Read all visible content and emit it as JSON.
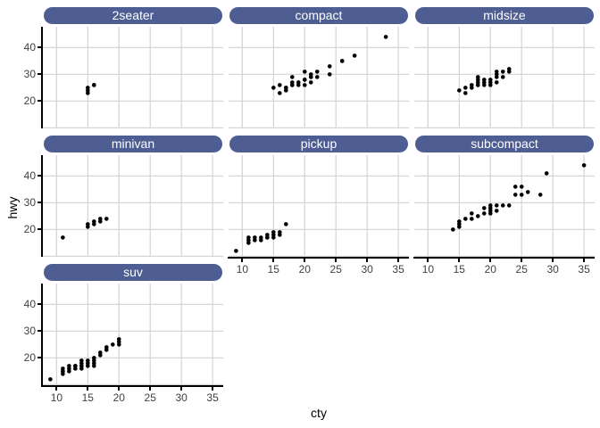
{
  "chart_data": {
    "type": "scatter",
    "title": "",
    "xlabel": "cty",
    "ylabel": "hwy",
    "x_ticks": [
      10,
      15,
      20,
      25,
      30,
      35
    ],
    "y_ticks": [
      20,
      30,
      40
    ],
    "y_gridlines": [
      10,
      20,
      30,
      40
    ],
    "xlim": [
      7.8,
      36.7
    ],
    "ylim": [
      9.8,
      47.8
    ],
    "grid": "major-only",
    "legend": "none",
    "facets": [
      {
        "label": "2seater",
        "points": [
          [
            15,
            23
          ],
          [
            15,
            24
          ],
          [
            15,
            25
          ],
          [
            16,
            26
          ],
          [
            16,
            26
          ]
        ]
      },
      {
        "label": "compact",
        "points": [
          [
            15,
            25
          ],
          [
            16,
            23
          ],
          [
            16,
            26
          ],
          [
            17,
            24
          ],
          [
            17,
            25
          ],
          [
            17,
            25
          ],
          [
            18,
            26
          ],
          [
            18,
            26
          ],
          [
            18,
            27
          ],
          [
            18,
            29
          ],
          [
            19,
            26
          ],
          [
            19,
            27
          ],
          [
            20,
            26
          ],
          [
            20,
            28
          ],
          [
            20,
            28
          ],
          [
            20,
            31
          ],
          [
            21,
            27
          ],
          [
            21,
            29
          ],
          [
            21,
            29
          ],
          [
            21,
            30
          ],
          [
            22,
            29
          ],
          [
            22,
            31
          ],
          [
            24,
            30
          ],
          [
            24,
            33
          ],
          [
            26,
            35
          ],
          [
            26,
            35
          ],
          [
            28,
            37
          ],
          [
            33,
            44
          ]
        ]
      },
      {
        "label": "midsize",
        "points": [
          [
            15,
            24
          ],
          [
            16,
            23
          ],
          [
            16,
            25
          ],
          [
            17,
            25
          ],
          [
            17,
            26
          ],
          [
            18,
            26
          ],
          [
            18,
            26
          ],
          [
            18,
            27
          ],
          [
            18,
            28
          ],
          [
            18,
            29
          ],
          [
            19,
            26
          ],
          [
            19,
            27
          ],
          [
            19,
            28
          ],
          [
            20,
            26
          ],
          [
            20,
            27
          ],
          [
            20,
            28
          ],
          [
            21,
            27
          ],
          [
            21,
            29
          ],
          [
            21,
            30
          ],
          [
            21,
            31
          ],
          [
            22,
            29
          ],
          [
            22,
            31
          ],
          [
            23,
            31
          ],
          [
            23,
            32
          ]
        ]
      },
      {
        "label": "minivan",
        "points": [
          [
            11,
            17
          ],
          [
            15,
            21
          ],
          [
            15,
            22
          ],
          [
            16,
            22
          ],
          [
            16,
            23
          ],
          [
            17,
            23
          ],
          [
            17,
            24
          ],
          [
            18,
            24
          ]
        ]
      },
      {
        "label": "pickup",
        "points": [
          [
            9,
            12
          ],
          [
            11,
            15
          ],
          [
            11,
            16
          ],
          [
            11,
            17
          ],
          [
            12,
            16
          ],
          [
            12,
            17
          ],
          [
            13,
            16
          ],
          [
            13,
            17
          ],
          [
            14,
            17
          ],
          [
            14,
            17
          ],
          [
            14,
            18
          ],
          [
            15,
            17
          ],
          [
            15,
            18
          ],
          [
            15,
            19
          ],
          [
            16,
            18
          ],
          [
            16,
            19
          ],
          [
            17,
            22
          ]
        ]
      },
      {
        "label": "subcompact",
        "points": [
          [
            14,
            20
          ],
          [
            15,
            21
          ],
          [
            15,
            22
          ],
          [
            15,
            23
          ],
          [
            16,
            24
          ],
          [
            17,
            24
          ],
          [
            17,
            26
          ],
          [
            18,
            25
          ],
          [
            19,
            26
          ],
          [
            19,
            28
          ],
          [
            20,
            26
          ],
          [
            20,
            27
          ],
          [
            20,
            28
          ],
          [
            20,
            29
          ],
          [
            21,
            27
          ],
          [
            21,
            29
          ],
          [
            22,
            29
          ],
          [
            23,
            29
          ],
          [
            24,
            33
          ],
          [
            24,
            36
          ],
          [
            25,
            33
          ],
          [
            25,
            36
          ],
          [
            26,
            34
          ],
          [
            28,
            33
          ],
          [
            29,
            41
          ],
          [
            35,
            44
          ]
        ]
      },
      {
        "label": "suv",
        "points": [
          [
            9,
            12
          ],
          [
            11,
            14
          ],
          [
            11,
            15
          ],
          [
            11,
            15
          ],
          [
            11,
            16
          ],
          [
            12,
            15
          ],
          [
            12,
            16
          ],
          [
            12,
            17
          ],
          [
            13,
            16
          ],
          [
            13,
            17
          ],
          [
            13,
            17
          ],
          [
            14,
            16
          ],
          [
            14,
            17
          ],
          [
            14,
            17
          ],
          [
            14,
            18
          ],
          [
            14,
            19
          ],
          [
            15,
            17
          ],
          [
            15,
            18
          ],
          [
            15,
            19
          ],
          [
            16,
            17
          ],
          [
            16,
            18
          ],
          [
            16,
            19
          ],
          [
            16,
            20
          ],
          [
            17,
            21
          ],
          [
            17,
            22
          ],
          [
            18,
            23
          ],
          [
            18,
            24
          ],
          [
            19,
            25
          ],
          [
            20,
            25
          ],
          [
            20,
            26
          ],
          [
            20,
            27
          ]
        ]
      }
    ]
  },
  "style": {
    "background": "#ffffff",
    "strip_bg": "#4e5d92",
    "strip_text_color": "#ffffff",
    "grid_color": "#d6d6d6",
    "point_color": "#000000",
    "axis_line_color": "#000000",
    "tick_label_color": "#404040"
  }
}
